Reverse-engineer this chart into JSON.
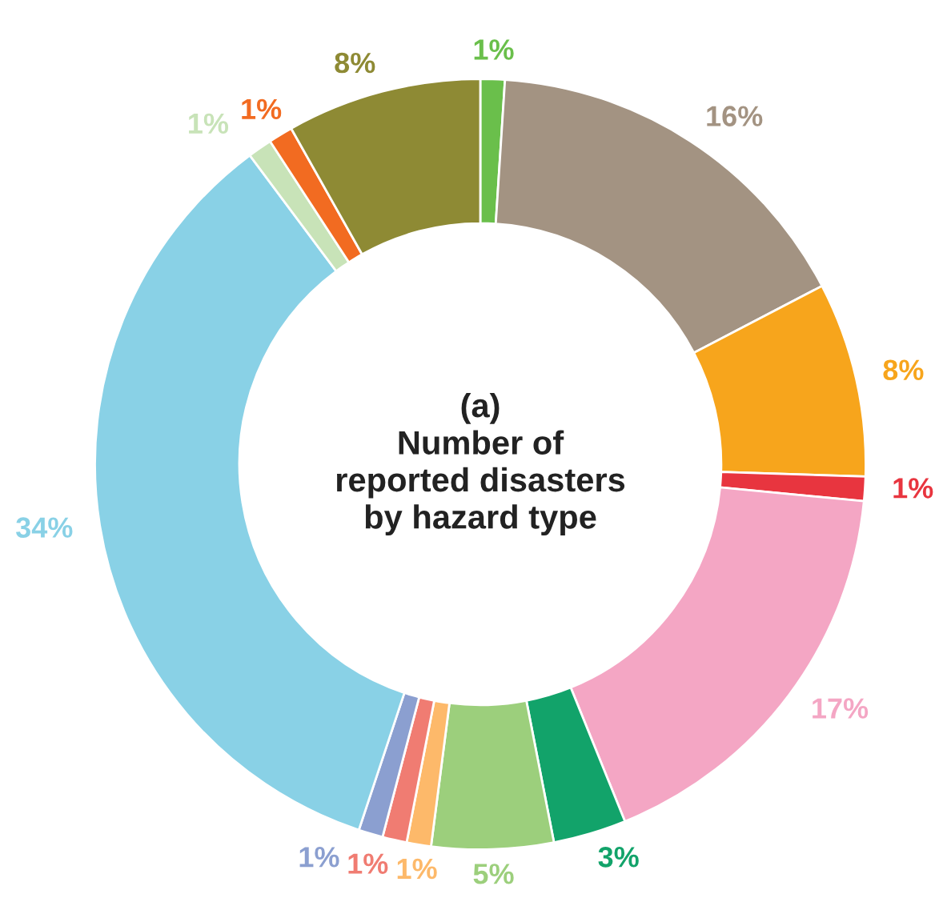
{
  "chart_data": {
    "type": "donut",
    "title": "(a)\nNumber of\nreported disasters\nby hazard type",
    "categories": [
      null,
      null,
      null,
      null,
      null,
      null,
      null,
      null,
      null,
      null,
      null,
      null,
      null,
      null
    ],
    "values": [
      1,
      16,
      8,
      1,
      17,
      3,
      5,
      1,
      1,
      1,
      34,
      1,
      1,
      8
    ],
    "value_labels": [
      "1%",
      "16%",
      "8%",
      "1%",
      "17%",
      "3%",
      "5%",
      "1%",
      "1%",
      "1%",
      "34%",
      "1%",
      "1%",
      "8%"
    ],
    "colors": [
      "#6abf4b",
      "#a39382",
      "#f7a51c",
      "#e8353f",
      "#f4a6c4",
      "#12a36a",
      "#9ccf7c",
      "#fdb96a",
      "#f07c72",
      "#8b9fd0",
      "#89d1e6",
      "#c8e3b8",
      "#f26b21",
      "#8e8a34"
    ],
    "legend": false
  }
}
